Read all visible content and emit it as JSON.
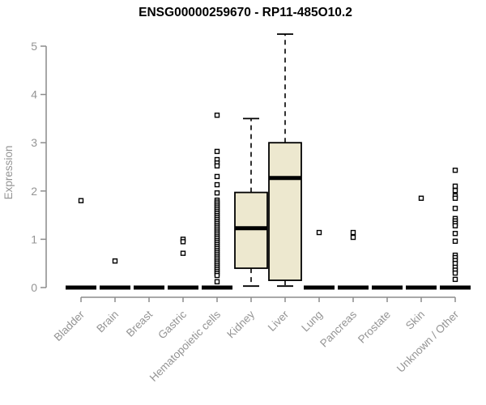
{
  "chart_data": {
    "type": "boxplot",
    "title": "ENSG00000259670 - RP11-485O10.2",
    "ylabel": "Expression",
    "xlabel": "",
    "ylim": [
      0,
      5.25
    ],
    "yticks": [
      0,
      1,
      2,
      3,
      4,
      5
    ],
    "grid": false,
    "legend": null,
    "categories": [
      "Bladder",
      "Brain",
      "Breast",
      "Gastric",
      "Hematopoietic cells",
      "Kidney",
      "Liver",
      "Lung",
      "Pancreas",
      "Prostate",
      "Skin",
      "Unknown / Other"
    ],
    "groups": [
      {
        "label": "Bladder",
        "box": {
          "median": 0,
          "q1": 0,
          "q3": 0,
          "low": 0,
          "high": 0
        },
        "points": [
          1.8
        ]
      },
      {
        "label": "Brain",
        "box": {
          "median": 0,
          "q1": 0,
          "q3": 0,
          "low": 0,
          "high": 0
        },
        "points": [
          0.55
        ]
      },
      {
        "label": "Breast",
        "box": {
          "median": 0,
          "q1": 0,
          "q3": 0,
          "low": 0,
          "high": 0
        },
        "points": []
      },
      {
        "label": "Gastric",
        "box": {
          "median": 0,
          "q1": 0,
          "q3": 0,
          "low": 0,
          "high": 0
        },
        "points": [
          1.0,
          0.95,
          0.71
        ]
      },
      {
        "label": "Hematopoietic cells",
        "box": {
          "median": 0,
          "q1": 0,
          "q3": 0,
          "low": 0,
          "high": 0
        },
        "points": [
          3.57,
          2.82,
          2.65,
          2.58,
          2.52,
          2.3,
          2.13,
          1.96,
          1.81,
          1.77,
          1.73,
          1.69,
          1.65,
          1.61,
          1.57,
          1.53,
          1.49,
          1.45,
          1.41,
          1.37,
          1.33,
          1.29,
          1.25,
          1.21,
          1.17,
          1.13,
          1.09,
          1.05,
          1.01,
          0.97,
          0.93,
          0.89,
          0.85,
          0.81,
          0.77,
          0.73,
          0.69,
          0.65,
          0.61,
          0.57,
          0.53,
          0.49,
          0.45,
          0.41,
          0.37,
          0.33,
          0.29,
          0.25,
          0.12
        ]
      },
      {
        "label": "Kidney",
        "box": {
          "median": 1.23,
          "q1": 0.4,
          "q3": 1.97,
          "low": 0.03,
          "high": 3.5
        },
        "points": []
      },
      {
        "label": "Liver",
        "box": {
          "median": 2.27,
          "q1": 0.15,
          "q3": 3.0,
          "low": 0.03,
          "high": 5.25
        },
        "points": []
      },
      {
        "label": "Lung",
        "box": {
          "median": 0,
          "q1": 0,
          "q3": 0,
          "low": 0,
          "high": 0
        },
        "points": [
          1.14
        ]
      },
      {
        "label": "Pancreas",
        "box": {
          "median": 0,
          "q1": 0,
          "q3": 0,
          "low": 0,
          "high": 0
        },
        "points": [
          1.14,
          1.04
        ]
      },
      {
        "label": "Prostate",
        "box": {
          "median": 0,
          "q1": 0,
          "q3": 0,
          "low": 0,
          "high": 0
        },
        "points": []
      },
      {
        "label": "Skin",
        "box": {
          "median": 0,
          "q1": 0,
          "q3": 0,
          "low": 0,
          "high": 0
        },
        "points": [
          1.85
        ]
      },
      {
        "label": "Unknown / Other",
        "box": {
          "median": 0,
          "q1": 0,
          "q3": 0,
          "low": 0,
          "high": 0
        },
        "points": [
          2.43,
          2.1,
          2.01,
          1.9,
          1.85,
          1.64,
          1.43,
          1.38,
          1.33,
          1.28,
          1.12,
          0.96,
          0.67,
          0.62,
          0.56,
          0.5,
          0.42,
          0.36,
          0.3,
          0.17
        ]
      }
    ],
    "colors": {
      "box_fill": "#EDE8CF",
      "box_stroke": "#000000",
      "median": "#000000",
      "point_fill": "#FFFFFF",
      "point_stroke": "#000000",
      "axis_line": "#8C8C8C",
      "tick_label": "#949494",
      "title": "#000000",
      "background": "#FFFFFF"
    }
  }
}
